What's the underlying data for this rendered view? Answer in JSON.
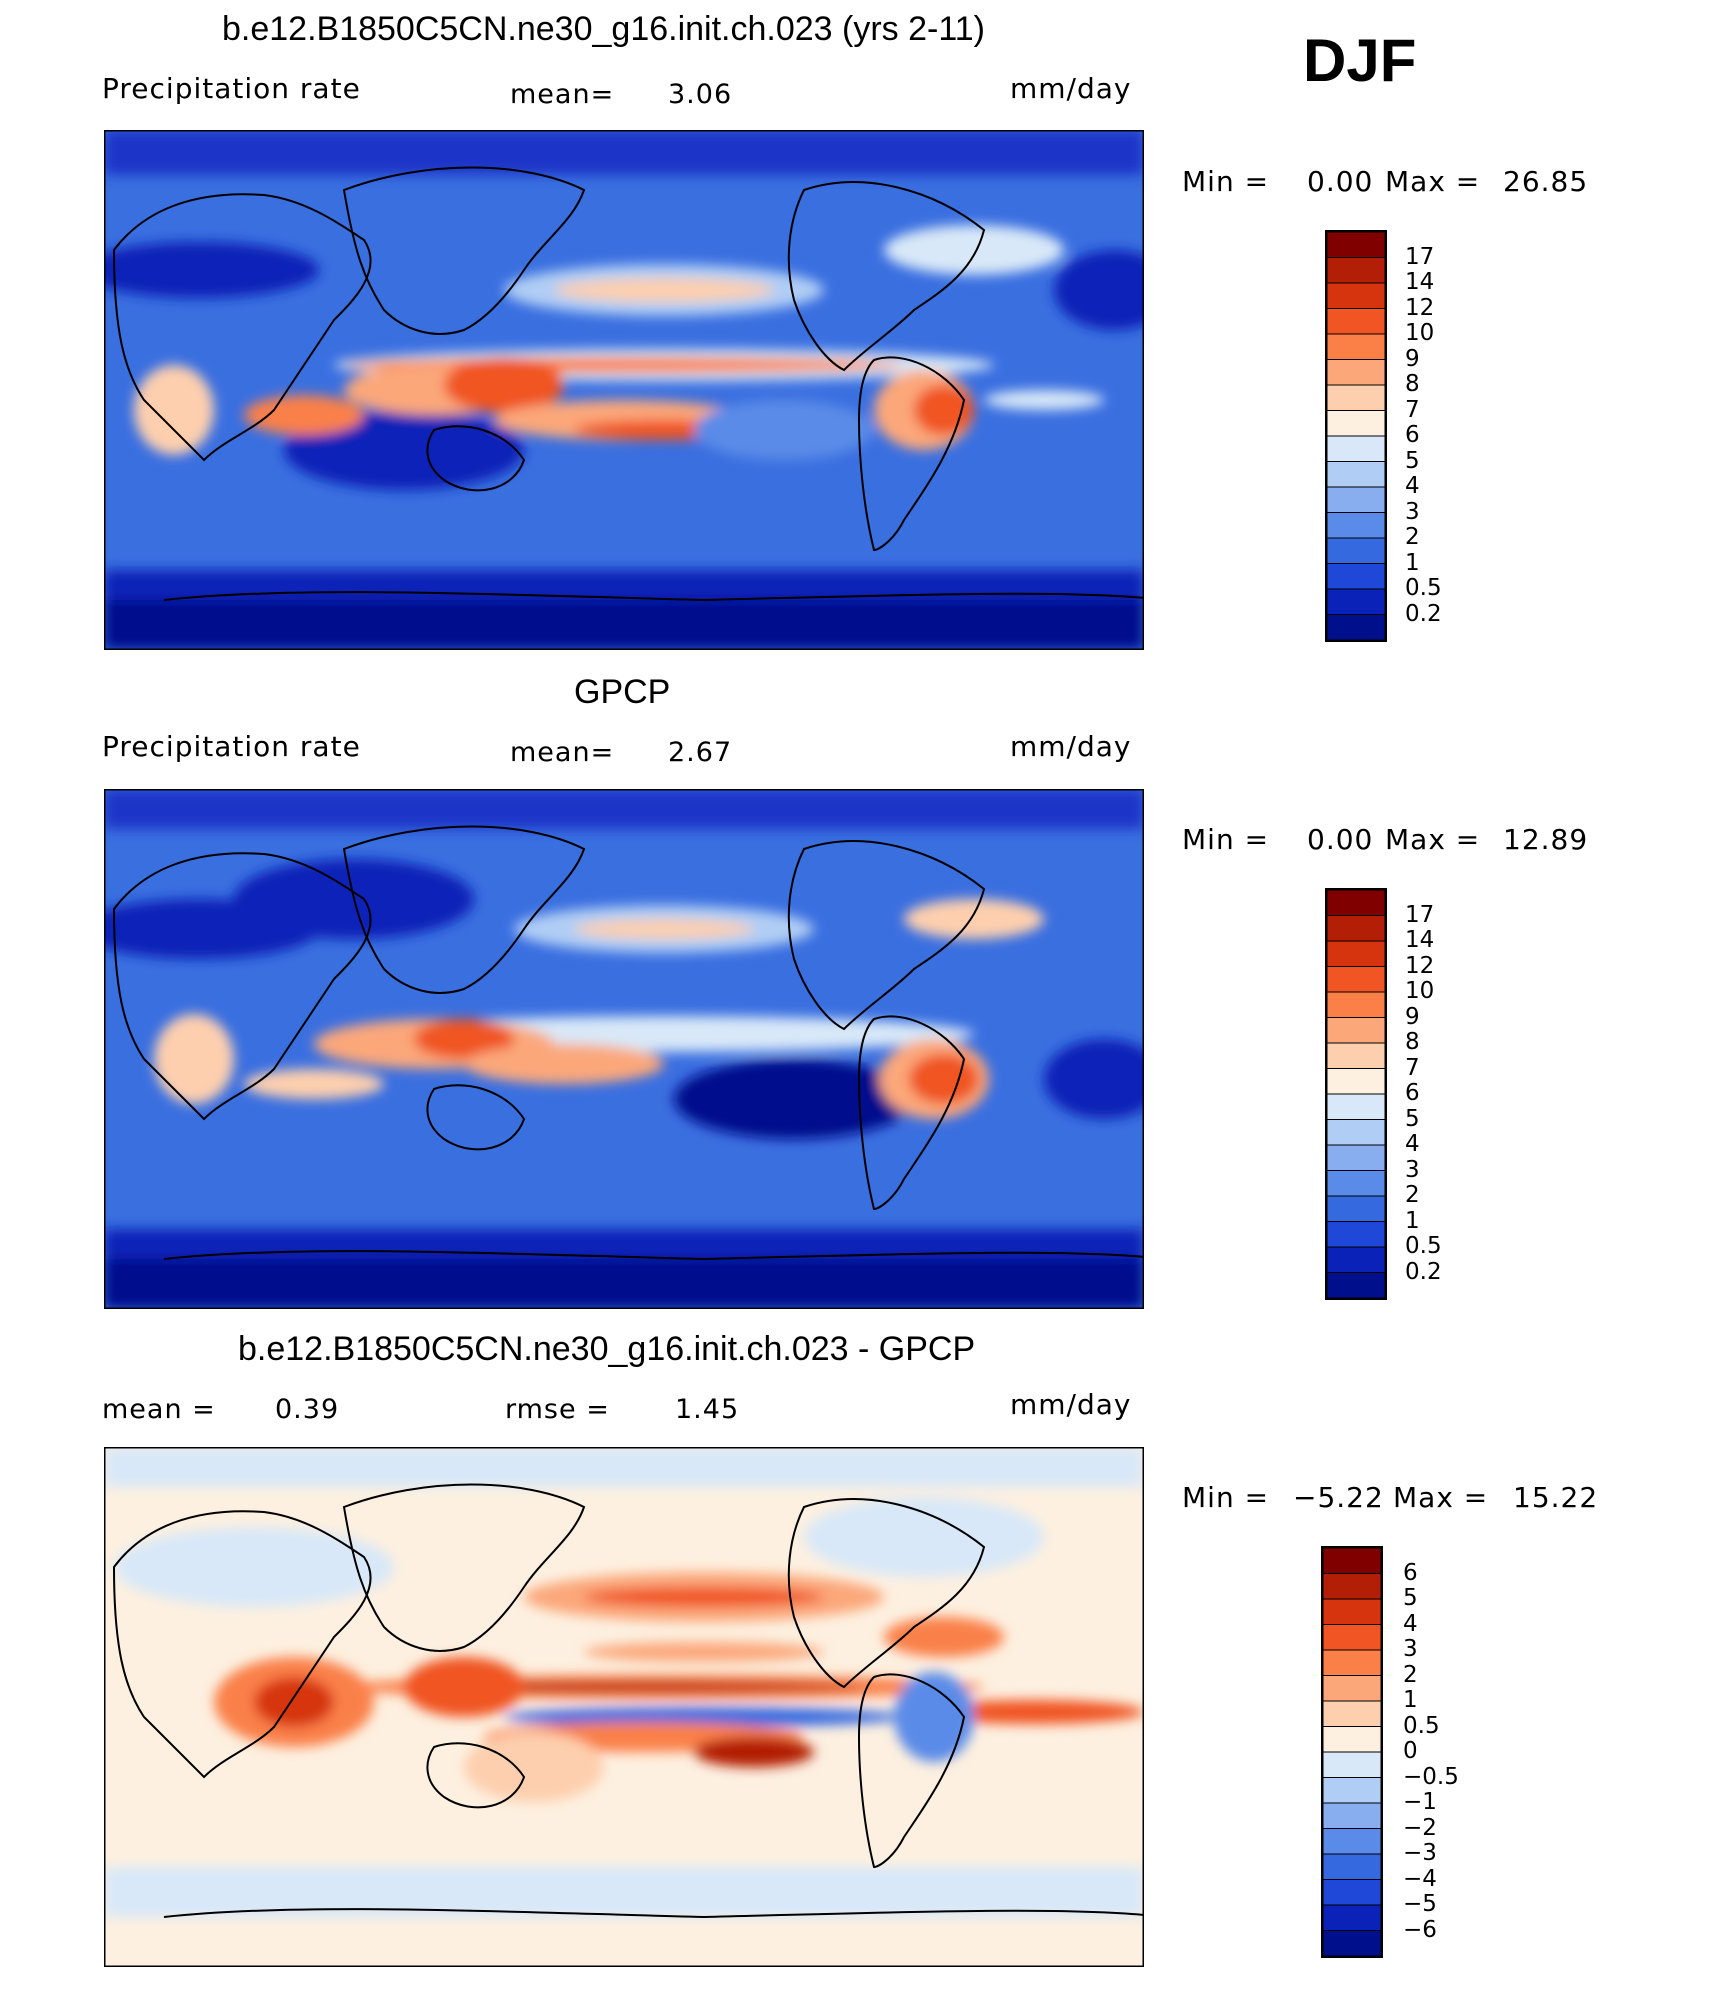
{
  "season": "DJF",
  "panels": [
    {
      "id": "model",
      "title": "b.e12.B1850C5CN.ne30_g16.init.ch.023 (yrs 2-11)",
      "left_label": "Precipitation rate",
      "mid_label": "mean=",
      "mid_value": "3.06",
      "units": "mm/day",
      "min_label": "Min =",
      "min_value": "0.00",
      "max_label": "Max =",
      "max_value": "26.85",
      "colorbar_labels": [
        "17",
        "14",
        "12",
        "10",
        "9",
        "8",
        "7",
        "6",
        "5",
        "4",
        "3",
        "2",
        "1",
        "0.5",
        "0.2"
      ],
      "colorbar_colors": [
        "#800000",
        "#b21e06",
        "#d6340e",
        "#f05523",
        "#fa8048",
        "#fba77a",
        "#fdcfae",
        "#fdf0e0",
        "#d8e8f8",
        "#b0cdf5",
        "#88aef0",
        "#5a8be8",
        "#3569e0",
        "#1f47d8",
        "#0b22b8",
        "#00108c"
      ]
    },
    {
      "id": "obs",
      "title": "GPCP",
      "left_label": "Precipitation rate",
      "mid_label": "mean=",
      "mid_value": "2.67",
      "units": "mm/day",
      "min_label": "Min =",
      "min_value": "0.00",
      "max_label": "Max =",
      "max_value": "12.89",
      "colorbar_labels": [
        "17",
        "14",
        "12",
        "10",
        "9",
        "8",
        "7",
        "6",
        "5",
        "4",
        "3",
        "2",
        "1",
        "0.5",
        "0.2"
      ],
      "colorbar_colors": [
        "#800000",
        "#b21e06",
        "#d6340e",
        "#f05523",
        "#fa8048",
        "#fba77a",
        "#fdcfae",
        "#fdf0e0",
        "#d8e8f8",
        "#b0cdf5",
        "#88aef0",
        "#5a8be8",
        "#3569e0",
        "#1f47d8",
        "#0b22b8",
        "#00108c"
      ]
    },
    {
      "id": "diff",
      "title": "b.e12.B1850C5CN.ne30_g16.init.ch.023 - GPCP",
      "left_label": "mean =",
      "left_value": "0.39",
      "mid_label": "rmse =",
      "mid_value": "1.45",
      "units": "mm/day",
      "min_label": "Min =",
      "min_value": "−5.22",
      "max_label": "Max =",
      "max_value": "15.22",
      "colorbar_labels": [
        "6",
        "5",
        "4",
        "3",
        "2",
        "1",
        "0.5",
        "0",
        "−0.5",
        "−1",
        "−2",
        "−3",
        "−4",
        "−5",
        "−6"
      ],
      "colorbar_colors": [
        "#800000",
        "#b21e06",
        "#d6340e",
        "#f05523",
        "#fa8048",
        "#fba77a",
        "#fdcfae",
        "#fdf0e0",
        "#d8e8f8",
        "#b0cdf5",
        "#88aef0",
        "#5a8be8",
        "#3569e0",
        "#1f47d8",
        "#0b22b8",
        "#00108c"
      ]
    }
  ]
}
